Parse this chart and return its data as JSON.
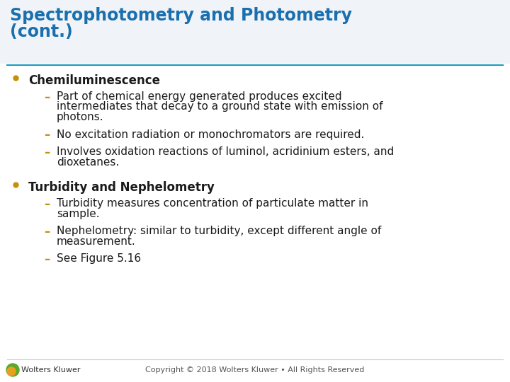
{
  "title_line1": "Spectrophotometry and Photometry",
  "title_line2": "(cont.)",
  "title_color": "#1a6faf",
  "title_fontsize": 17,
  "separator_color": "#1a9abf",
  "bg_color": "#ffffff",
  "bullet_color": "#c8900a",
  "dash_color": "#c8900a",
  "text_color": "#1a1a1a",
  "bullet_fontsize": 12,
  "sub_fontsize": 11,
  "bullets": [
    {
      "text": "Chemiluminescence",
      "subs": [
        "Part of chemical energy generated produces excited\nintermediates that decay to a ground state with emission of\nphotons.",
        "No excitation radiation or monochromators are required.",
        "Involves oxidation reactions of luminol, acridinium esters, and\ndioxetanes."
      ]
    },
    {
      "text": "Turbidity and Nephelometry",
      "subs": [
        "Turbidity measures concentration of particulate matter in\nsample.",
        "Nephelometry: similar to turbidity, except different angle of\nmeasurement.",
        "See Figure 5.16"
      ]
    }
  ],
  "footer_text": "Copyright © 2018 Wolters Kluwer • All Rights Reserved",
  "footer_logo_text": "Wolters Kluwer",
  "footer_fontsize": 8,
  "title_bg_color": "#f0f4f8"
}
